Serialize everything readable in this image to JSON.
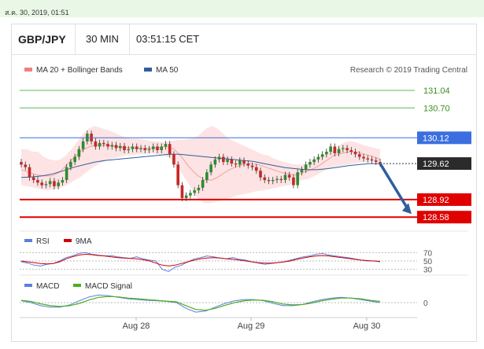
{
  "header": {
    "date": "ส.ค. 30, 2019, 01:51"
  },
  "toolbar": {
    "symbol": "GBP/JPY",
    "timeframe": "30 MIN",
    "time": "03:51:15 CET"
  },
  "legend": {
    "ma20": "MA 20 + Bollinger Bands",
    "ma50": "MA 50",
    "credit": "Research © 2019 Trading Central",
    "ma20_color": "#f08080",
    "ma50_color": "#2f5e9e"
  },
  "chart_data": [
    {
      "type": "line",
      "series": [
        {
          "name": "MA 20 + Bollinger Bands",
          "color": "#f08080"
        },
        {
          "name": "MA 50",
          "color": "#2f5e9e"
        }
      ],
      "levels": [
        {
          "value": 131.04,
          "label": "131.04",
          "color": "#5cb85c"
        },
        {
          "value": 130.7,
          "label": "130.70",
          "color": "#5cb85c"
        },
        {
          "value": 130.12,
          "label": "130.12",
          "color": "#3b6fe0"
        },
        {
          "value": 128.92,
          "label": "128.92",
          "color": "#e00000"
        },
        {
          "value": 128.58,
          "label": "128.58",
          "color": "#e00000"
        }
      ],
      "last_price": {
        "value": 129.62,
        "label": "129.62",
        "color": "#2b2b2b"
      },
      "x_labels": [
        "Aug 28",
        "Aug 29",
        "Aug 30"
      ],
      "ylim": [
        128.4,
        131.3
      ],
      "close": [
        129.6,
        129.55,
        129.35,
        129.3,
        129.25,
        129.2,
        129.22,
        129.28,
        129.18,
        129.25,
        129.3,
        129.55,
        129.65,
        129.75,
        129.9,
        130.05,
        130.2,
        130.05,
        129.95,
        130.02,
        130.0,
        129.95,
        129.98,
        129.92,
        129.96,
        129.88,
        129.9,
        129.95,
        129.9,
        129.92,
        129.88,
        129.9,
        129.95,
        129.88,
        129.95,
        130.0,
        129.8,
        129.6,
        129.2,
        128.95,
        129.0,
        129.05,
        129.1,
        129.15,
        129.3,
        129.45,
        129.6,
        129.7,
        129.75,
        129.65,
        129.7,
        129.62,
        129.6,
        129.68,
        129.62,
        129.58,
        129.55,
        129.48,
        129.35,
        129.3,
        129.28,
        129.3,
        129.32,
        129.3,
        129.4,
        129.35,
        129.2,
        129.45,
        129.5,
        129.6,
        129.65,
        129.7,
        129.75,
        129.8,
        129.85,
        129.95,
        129.82,
        129.9,
        129.92,
        129.88,
        129.85,
        129.8,
        129.75,
        129.72,
        129.7,
        129.68,
        129.65,
        129.62
      ],
      "bb_upper": [
        129.9,
        129.9,
        129.85,
        129.85,
        129.75,
        129.7,
        129.68,
        129.7,
        129.78,
        129.9,
        130.05,
        130.2,
        130.3,
        130.35,
        130.32,
        130.28,
        130.25,
        130.2,
        130.15,
        130.12,
        130.1,
        130.1,
        130.08,
        130.06,
        130.05,
        130.04,
        130.04,
        130.06,
        130.08,
        130.08,
        130.1,
        130.12,
        130.2,
        130.3,
        130.35,
        130.3,
        130.2,
        130.1,
        130.05,
        130.0,
        129.95,
        129.9,
        129.85,
        129.8,
        129.78,
        129.72,
        129.68,
        129.65,
        129.62,
        129.6,
        129.6,
        129.62,
        129.68,
        129.75,
        129.8,
        129.85,
        129.9,
        130.0,
        130.05,
        130.05,
        130.02,
        129.98,
        129.95,
        129.92,
        129.9
      ],
      "bb_lower": [
        129.2,
        129.18,
        129.15,
        129.12,
        129.1,
        129.12,
        129.15,
        129.2,
        129.28,
        129.35,
        129.45,
        129.55,
        129.62,
        129.68,
        129.72,
        129.75,
        129.78,
        129.78,
        129.8,
        129.8,
        129.82,
        129.8,
        129.78,
        129.7,
        129.55,
        129.35,
        129.15,
        128.95,
        128.85,
        128.85,
        128.88,
        128.92,
        128.95,
        129.0,
        129.02,
        129.05,
        129.08,
        129.1,
        129.12,
        129.15,
        129.18,
        129.2,
        129.25,
        129.3,
        129.32,
        129.38,
        129.45,
        129.52,
        129.56,
        129.58,
        129.6,
        129.62,
        129.64,
        129.65,
        129.66,
        129.66
      ],
      "ma20": [
        129.5,
        129.45,
        129.4,
        129.38,
        129.38,
        129.45,
        129.6,
        129.75,
        129.88,
        129.95,
        129.98,
        129.98,
        129.96,
        129.94,
        129.93,
        129.92,
        129.91,
        129.92,
        129.93,
        129.95,
        129.9,
        129.75,
        129.55,
        129.4,
        129.3,
        129.3,
        129.38,
        129.48,
        129.55,
        129.6,
        129.62,
        129.6,
        129.55,
        129.5,
        129.45,
        129.42,
        129.4,
        129.45,
        129.5,
        129.58,
        129.68,
        129.78,
        129.82,
        129.85,
        129.84,
        129.8,
        129.76,
        129.7
      ],
      "ma50": [
        129.35,
        129.36,
        129.38,
        129.42,
        129.48,
        129.55,
        129.6,
        129.65,
        129.68,
        129.7,
        129.72,
        129.74,
        129.76,
        129.78,
        129.8,
        129.8,
        129.78,
        129.76,
        129.74,
        129.72,
        129.7,
        129.68,
        129.66,
        129.62,
        129.58,
        129.54,
        129.52,
        129.5,
        129.5,
        129.52,
        129.55,
        129.58,
        129.6,
        129.62,
        129.62
      ]
    },
    {
      "type": "line",
      "series": [
        {
          "name": "RSI",
          "color": "#5b7fe0"
        },
        {
          "name": "9MA",
          "color": "#d00000"
        }
      ],
      "ticks": [
        "70",
        "50",
        "30"
      ],
      "ylim": [
        20,
        80
      ],
      "rsi": [
        48,
        45,
        40,
        38,
        42,
        44,
        50,
        58,
        62,
        68,
        70,
        66,
        64,
        62,
        63,
        60,
        58,
        56,
        60,
        55,
        52,
        50,
        30,
        25,
        35,
        40,
        48,
        55,
        58,
        62,
        60,
        57,
        55,
        58,
        54,
        52,
        48,
        45,
        42,
        44,
        46,
        48,
        52,
        56,
        60,
        62,
        66,
        68,
        64,
        62,
        60,
        58,
        55,
        52,
        50,
        50,
        48
      ],
      "ma9": [
        50,
        48,
        46,
        44,
        43,
        44,
        48,
        55,
        60,
        64,
        66,
        65,
        63,
        62,
        60,
        58,
        57,
        56,
        55,
        53,
        50,
        45,
        40,
        38,
        40,
        44,
        48,
        52,
        55,
        57,
        58,
        57,
        55,
        54,
        52,
        50,
        48,
        46,
        45,
        45,
        46,
        48,
        50,
        54,
        57,
        60,
        62,
        63,
        62,
        60,
        58,
        56,
        54,
        52,
        51,
        50,
        49
      ]
    },
    {
      "type": "line",
      "series": [
        {
          "name": "MACD",
          "color": "#5b7fe0"
        },
        {
          "name": "MACD Signal",
          "color": "#4caf20"
        }
      ],
      "ticks": [
        "0"
      ],
      "ylim": [
        -0.35,
        0.35
      ],
      "macd": [
        0.05,
        0.0,
        -0.08,
        -0.12,
        -0.12,
        -0.06,
        0.05,
        0.15,
        0.2,
        0.18,
        0.14,
        0.1,
        0.08,
        0.06,
        0.05,
        0.03,
        0.0,
        -0.15,
        -0.25,
        -0.22,
        -0.12,
        -0.02,
        0.05,
        0.08,
        0.08,
        0.05,
        -0.02,
        -0.08,
        -0.08,
        -0.05,
        0.02,
        0.08,
        0.12,
        0.14,
        0.12,
        0.08,
        0.04,
        0.0
      ],
      "signal": [
        0.06,
        0.03,
        -0.03,
        -0.08,
        -0.1,
        -0.08,
        -0.02,
        0.07,
        0.14,
        0.16,
        0.15,
        0.12,
        0.1,
        0.08,
        0.06,
        0.04,
        0.02,
        -0.08,
        -0.18,
        -0.2,
        -0.15,
        -0.07,
        0.0,
        0.05,
        0.07,
        0.06,
        0.02,
        -0.04,
        -0.06,
        -0.05,
        -0.01,
        0.05,
        0.09,
        0.12,
        0.12,
        0.1,
        0.06,
        0.03
      ]
    }
  ],
  "panels": {
    "rsi": {
      "legend_rsi": "RSI",
      "legend_ma": "9MA"
    },
    "macd": {
      "legend_macd": "MACD",
      "legend_signal": "MACD Signal"
    }
  }
}
